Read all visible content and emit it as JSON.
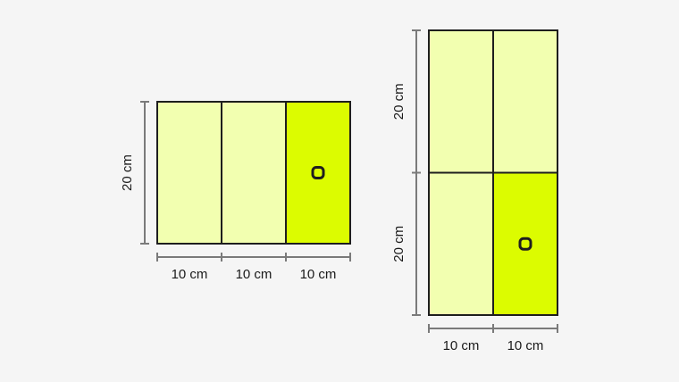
{
  "colors": {
    "background": "#f5f5f5",
    "cell_light": "#f2ffb0",
    "cell_highlight": "#dcfc00",
    "outline": "#1e1e1e",
    "dimension": "#7a7a7a"
  },
  "figure_a": {
    "height_label": "20 cm",
    "width_labels": [
      "10 cm",
      "10 cm",
      "10 cm"
    ],
    "columns": 3,
    "rows": 1,
    "highlighted_cell": {
      "row": 0,
      "col": 2
    },
    "marker_icon": "circle-marker-icon"
  },
  "figure_b": {
    "height_labels": [
      "20 cm",
      "20 cm"
    ],
    "width_labels": [
      "10 cm",
      "10 cm"
    ],
    "columns": 2,
    "rows": 2,
    "highlighted_cell": {
      "row": 1,
      "col": 1
    },
    "marker_icon": "circle-marker-icon"
  }
}
